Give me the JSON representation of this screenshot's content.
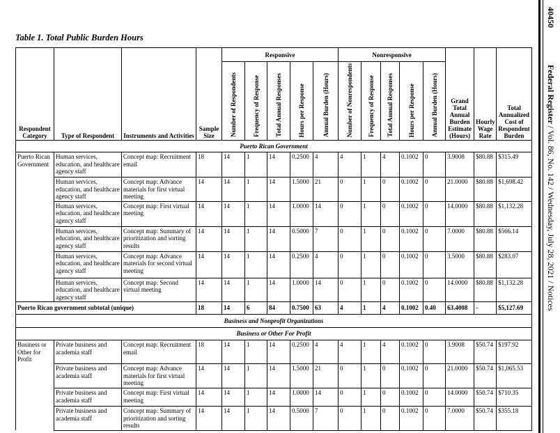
{
  "page_number": "40450",
  "running_head": {
    "publication": "Federal Register",
    "details": " / Vol. 86, No. 142 / Wednesday, July 28, 2021 / Notices"
  },
  "title": "Table 1. Total Public Burden Hours",
  "headers": {
    "respondent_category": "Respondent Category",
    "type_of_respondent": "Type of Respondent",
    "instruments": "Instruments and Activities",
    "sample_size": "Sample Size",
    "responsive": "Responsive",
    "nonresponsive": "Nonresponsive",
    "responsive_cols": [
      "Number of Respondents",
      "Frequency of Response",
      "Total Annual Responses",
      "Hours per Response",
      "Annual Burden (Hours)"
    ],
    "nonresponsive_cols": [
      "Number of Nonrespondents",
      "Frequency of Response",
      "Total Annual Responses",
      "Hours per Response",
      "Annual Burden (Hours)"
    ],
    "grand_total": "Grand Total Annual Burden Estimate (Hours)",
    "wage": "Hourly Wage Rate",
    "cost": "Total Annualized Cost of Respondent Burden"
  },
  "sections": [
    {
      "heading": "Puerto Rican Government",
      "category": "Puerto Rican Government",
      "rows": [
        [
          "Human services, education, and healthcare agency staff",
          "Concept map: Recruitment email",
          "18",
          "14",
          "1",
          "14",
          "0.2500",
          "4",
          "4",
          "1",
          "4",
          "0.1002",
          "0",
          "3.9008",
          "$80.88",
          "$315.49"
        ],
        [
          "Human services, education, and healthcare agency staff",
          "Concept map: Advance materials for first virtual meeting",
          "14",
          "14",
          "1",
          "14",
          "1.5000",
          "21",
          "0",
          "1",
          "0",
          "0.1002",
          "0",
          "21.0000",
          "$80.88",
          "$1,698.42"
        ],
        [
          "Human services, education, and healthcare agency staff",
          "Concept map: First virtual meeting",
          "14",
          "14",
          "1",
          "14",
          "1.0000",
          "14",
          "0",
          "1",
          "0",
          "0.1002",
          "0",
          "14.0000",
          "$80.88",
          "$1,132.28"
        ],
        [
          "Human services, education, and healthcare agency staff",
          "Concept map: Summary of prioritization and sorting results",
          "14",
          "14",
          "1",
          "14",
          "0.5000",
          "7",
          "0",
          "1",
          "0",
          "0.1002",
          "0",
          "7.0000",
          "$80.88",
          "$566.14"
        ],
        [
          "Human services, education, and healthcare agency staff",
          "Concept map: Advance materials for second virtual meeting",
          "14",
          "14",
          "1",
          "14",
          "0.2500",
          "4",
          "0",
          "1",
          "0",
          "0.1002",
          "0",
          "3.5000",
          "$80.88",
          "$283.07"
        ],
        [
          "Human services, education, and healthcare agency staff",
          "Concept map: Second virtual meeting",
          "14",
          "14",
          "1",
          "14",
          "1.0000",
          "14",
          "0",
          "1",
          "0",
          "0.1002",
          "0",
          "14.0000",
          "$80.88",
          "$1,132.28"
        ]
      ],
      "subtotal": {
        "label": "Puerto Rican government subtotal (unique)",
        "values": [
          "18",
          "14",
          "6",
          "84",
          "0.7500",
          "63",
          "4",
          "1",
          "4",
          "0.1002",
          "0.40",
          "63.4008",
          "-",
          "$5,127.69"
        ]
      }
    },
    {
      "heading": "Business and Nonprofit Organizations",
      "subheading": "Business or Other For Profit",
      "category": "Business or Other for Profit",
      "rows": [
        [
          "Private business and academia staff",
          "Concept map: Recruitment email",
          "18",
          "14",
          "1",
          "14",
          "0.2500",
          "4",
          "4",
          "1",
          "4",
          "0.1002",
          "0",
          "3.9008",
          "$50.74",
          "$197.92"
        ],
        [
          "Private business and academia staff",
          "Concept map: Advance materials for first virtual meeting",
          "14",
          "14",
          "1",
          "14",
          "1.5000",
          "21",
          "0",
          "1",
          "0",
          "0.1002",
          "0",
          "21.0000",
          "$50.74",
          "$1,065.53"
        ],
        [
          "Private business and academia staff",
          "Concept map: First virtual meeting",
          "14",
          "14",
          "1",
          "14",
          "1.0000",
          "14",
          "0",
          "1",
          "0",
          "0.1002",
          "0",
          "14.0000",
          "$50.74",
          "$710.35"
        ],
        [
          "Private business and academia staff",
          "Concept map: Summary of prioritization and sorting results",
          "14",
          "14",
          "1",
          "14",
          "0.5000",
          "7",
          "0",
          "1",
          "0",
          "0.1002",
          "0",
          "7.0000",
          "$50.74",
          "$355.18"
        ]
      ]
    }
  ]
}
